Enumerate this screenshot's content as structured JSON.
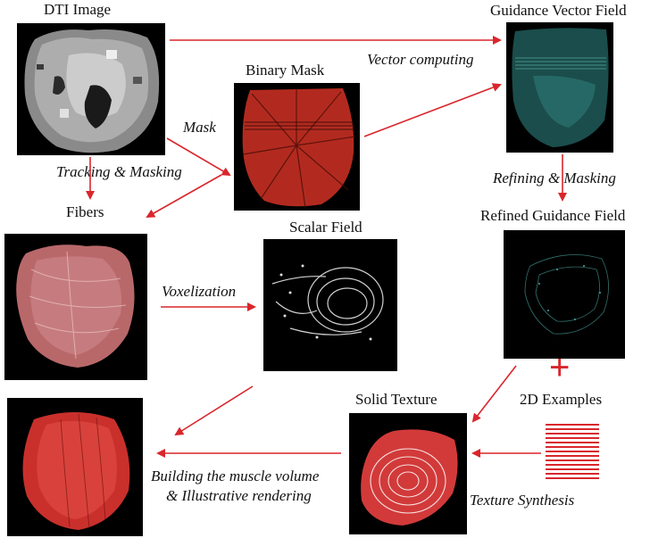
{
  "nodes": {
    "dti_image": "DTI Image",
    "binary_mask": "Binary Mask",
    "guidance_vector_field": "Guidance Vector Field",
    "fibers": "Fibers",
    "scalar_field": "Scalar Field",
    "refined_guidance_field": "Refined Guidance Field",
    "solid_texture": "Solid Texture",
    "examples_2d": "2D Examples"
  },
  "operations": {
    "vector_computing": "Vector computing",
    "mask": "Mask",
    "tracking_masking": "Tracking & Masking",
    "refining_masking": "Refining  & Masking",
    "voxelization": "Voxelization",
    "building_line1": "Building the muscle volume",
    "building_line2": "& Illustrative rendering",
    "texture_synthesis": "Texture Synthesis"
  },
  "plus_symbol": "+",
  "colors": {
    "arrow": "#d9262c",
    "panel_bg": "#000000"
  }
}
